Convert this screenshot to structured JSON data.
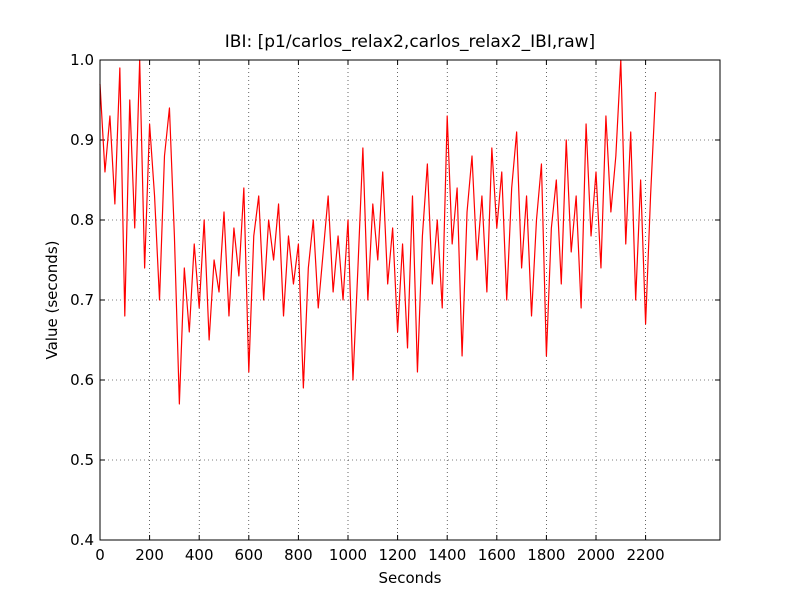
{
  "chart_data": {
    "type": "line",
    "title": "IBI: [p1/carlos_relax2,carlos_relax2_IBI,raw]",
    "x_label": "Seconds",
    "y_label": "Value (seconds)",
    "color": "#ff0000",
    "grid": true,
    "xlim": [
      0,
      2500
    ],
    "xticks": [
      0,
      200,
      400,
      600,
      800,
      1000,
      1200,
      1400,
      1600,
      1800,
      2000,
      2200
    ],
    "ylim": [
      0.4,
      1.0
    ],
    "yticks": [
      0.4,
      0.5,
      0.6,
      0.7,
      0.8,
      0.9,
      {
        "value": 1.0,
        "label": "1.0"
      }
    ],
    "x": [
      0,
      20,
      40,
      60,
      80,
      100,
      120,
      140,
      160,
      180,
      200,
      220,
      240,
      260,
      280,
      300,
      320,
      340,
      360,
      380,
      400,
      420,
      440,
      460,
      480,
      500,
      520,
      540,
      560,
      580,
      600,
      620,
      640,
      660,
      680,
      700,
      720,
      740,
      760,
      780,
      800,
      820,
      840,
      860,
      880,
      900,
      920,
      940,
      960,
      980,
      1000,
      1020,
      1040,
      1060,
      1080,
      1100,
      1120,
      1140,
      1160,
      1180,
      1200,
      1220,
      1240,
      1260,
      1280,
      1300,
      1320,
      1340,
      1360,
      1380,
      1400,
      1420,
      1440,
      1460,
      1480,
      1500,
      1520,
      1540,
      1560,
      1580,
      1600,
      1620,
      1640,
      1660,
      1680,
      1700,
      1720,
      1740,
      1760,
      1780,
      1800,
      1820,
      1840,
      1860,
      1880,
      1900,
      1920,
      1940,
      1960,
      1980,
      2000,
      2020,
      2040,
      2060,
      2080,
      2100,
      2120,
      2140,
      2160,
      2180,
      2200,
      2220,
      2240
    ],
    "values": [
      0.97,
      0.86,
      0.93,
      0.82,
      0.99,
      0.68,
      0.95,
      0.79,
      1.0,
      0.74,
      0.92,
      0.83,
      0.7,
      0.88,
      0.94,
      0.78,
      0.57,
      0.74,
      0.66,
      0.77,
      0.69,
      0.8,
      0.65,
      0.75,
      0.71,
      0.81,
      0.68,
      0.79,
      0.73,
      0.84,
      0.61,
      0.78,
      0.83,
      0.7,
      0.8,
      0.75,
      0.82,
      0.68,
      0.78,
      0.72,
      0.77,
      0.59,
      0.74,
      0.8,
      0.69,
      0.76,
      0.83,
      0.71,
      0.78,
      0.7,
      0.8,
      0.6,
      0.74,
      0.89,
      0.7,
      0.82,
      0.75,
      0.86,
      0.72,
      0.79,
      0.66,
      0.77,
      0.64,
      0.83,
      0.61,
      0.78,
      0.87,
      0.72,
      0.8,
      0.69,
      0.93,
      0.77,
      0.84,
      0.63,
      0.81,
      0.88,
      0.75,
      0.83,
      0.71,
      0.89,
      0.79,
      0.86,
      0.7,
      0.84,
      0.91,
      0.74,
      0.83,
      0.68,
      0.8,
      0.87,
      0.63,
      0.79,
      0.85,
      0.72,
      0.9,
      0.76,
      0.83,
      0.69,
      0.92,
      0.78,
      0.86,
      0.74,
      0.93,
      0.81,
      0.88,
      1.0,
      0.77,
      0.91,
      0.7,
      0.85,
      0.67,
      0.83,
      0.96
    ]
  }
}
